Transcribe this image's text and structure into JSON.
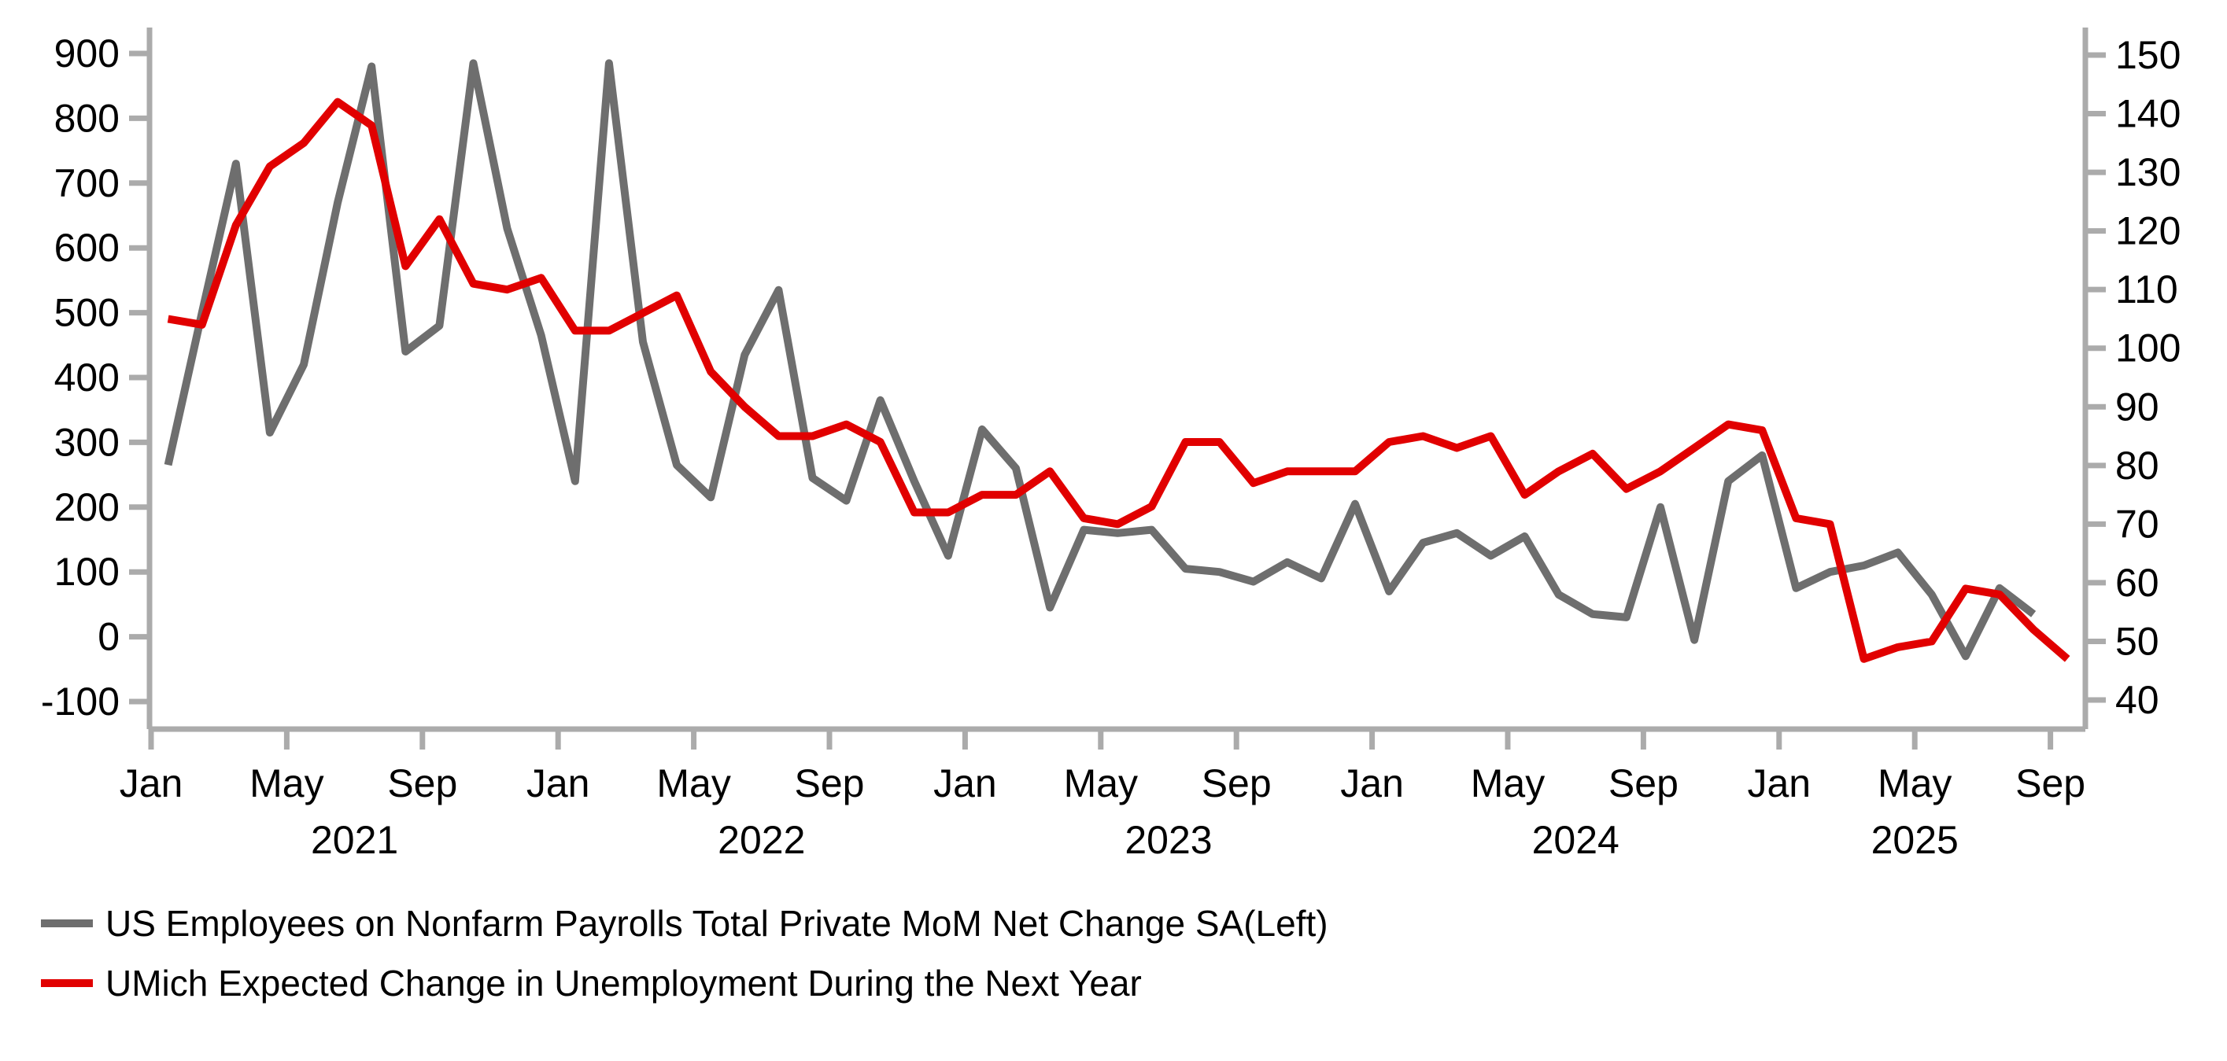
{
  "chart_data": {
    "type": "line",
    "title": "",
    "x": [
      "2021-01",
      "2021-02",
      "2021-03",
      "2021-04",
      "2021-05",
      "2021-06",
      "2021-07",
      "2021-08",
      "2021-09",
      "2021-10",
      "2021-11",
      "2021-12",
      "2022-01",
      "2022-02",
      "2022-03",
      "2022-04",
      "2022-05",
      "2022-06",
      "2022-07",
      "2022-08",
      "2022-09",
      "2022-10",
      "2022-11",
      "2022-12",
      "2023-01",
      "2023-02",
      "2023-03",
      "2023-04",
      "2023-05",
      "2023-06",
      "2023-07",
      "2023-08",
      "2023-09",
      "2023-10",
      "2023-11",
      "2023-12",
      "2024-01",
      "2024-02",
      "2024-03",
      "2024-04",
      "2024-05",
      "2024-06",
      "2024-07",
      "2024-08",
      "2024-09",
      "2024-10",
      "2024-11",
      "2024-12",
      "2025-01",
      "2025-02",
      "2025-03",
      "2025-04",
      "2025-05",
      "2025-06",
      "2025-07",
      "2025-08",
      "2025-09"
    ],
    "series": [
      {
        "name": "US Employees on Nonfarm Payrolls Total Private MoM Net Change SA(Left)",
        "axis": "left",
        "color": "#6e6e6e",
        "values": [
          265,
          500,
          730,
          315,
          420,
          670,
          880,
          440,
          480,
          885,
          630,
          465,
          240,
          885,
          455,
          265,
          215,
          435,
          535,
          245,
          210,
          365,
          240,
          125,
          320,
          260,
          45,
          165,
          160,
          165,
          105,
          100,
          85,
          115,
          90,
          205,
          70,
          145,
          160,
          125,
          155,
          65,
          35,
          30,
          200,
          -5,
          240,
          280,
          75,
          100,
          110,
          130,
          65,
          -30,
          75,
          35,
          null
        ]
      },
      {
        "name": "UMich Expected Change in Unemployment During the Next Year",
        "axis": "right",
        "color": "#e10000",
        "values": [
          105,
          104,
          121,
          131,
          135,
          142,
          138,
          114,
          122,
          111,
          110,
          112,
          103,
          103,
          106,
          109,
          96,
          90,
          85,
          85,
          87,
          84,
          72,
          72,
          75,
          75,
          79,
          71,
          70,
          73,
          84,
          84,
          77,
          79,
          79,
          79,
          84,
          85,
          83,
          85,
          75,
          79,
          82,
          76,
          79,
          83,
          87,
          86,
          71,
          70,
          47,
          49,
          50,
          59,
          58,
          52,
          47
        ]
      }
    ],
    "left_axis": {
      "min": -100,
      "max": 900,
      "tick_step": 100,
      "ticks": [
        900,
        800,
        700,
        600,
        500,
        400,
        300,
        200,
        100,
        0,
        -100
      ]
    },
    "right_axis": {
      "min": 40,
      "max": 150,
      "tick_step": 10,
      "ticks": [
        150,
        140,
        130,
        120,
        110,
        100,
        90,
        80,
        70,
        60,
        50,
        40
      ]
    },
    "x_ticks": [
      {
        "month_index": 0,
        "label": "Jan"
      },
      {
        "month_index": 4,
        "label": "May"
      },
      {
        "month_index": 8,
        "label": "Sep"
      },
      {
        "month_index": 12,
        "label": "Jan"
      },
      {
        "month_index": 16,
        "label": "May"
      },
      {
        "month_index": 20,
        "label": "Sep"
      },
      {
        "month_index": 24,
        "label": "Jan"
      },
      {
        "month_index": 28,
        "label": "May"
      },
      {
        "month_index": 32,
        "label": "Sep"
      },
      {
        "month_index": 36,
        "label": "Jan"
      },
      {
        "month_index": 40,
        "label": "May"
      },
      {
        "month_index": 44,
        "label": "Sep"
      },
      {
        "month_index": 48,
        "label": "Jan"
      },
      {
        "month_index": 52,
        "label": "May"
      },
      {
        "month_index": 56,
        "label": "Sep"
      }
    ],
    "year_labels": [
      {
        "label": "2021",
        "center_month": 6
      },
      {
        "label": "2022",
        "center_month": 18
      },
      {
        "label": "2023",
        "center_month": 30
      },
      {
        "label": "2024",
        "center_month": 42
      },
      {
        "label": "2025",
        "center_month": 52
      }
    ],
    "grid": false,
    "legend_position": "bottom-left"
  },
  "colors": {
    "background": "#ffffff",
    "axis": "#ababab",
    "text": "#000000",
    "series_payrolls": "#6e6e6e",
    "series_umich": "#e10000"
  }
}
